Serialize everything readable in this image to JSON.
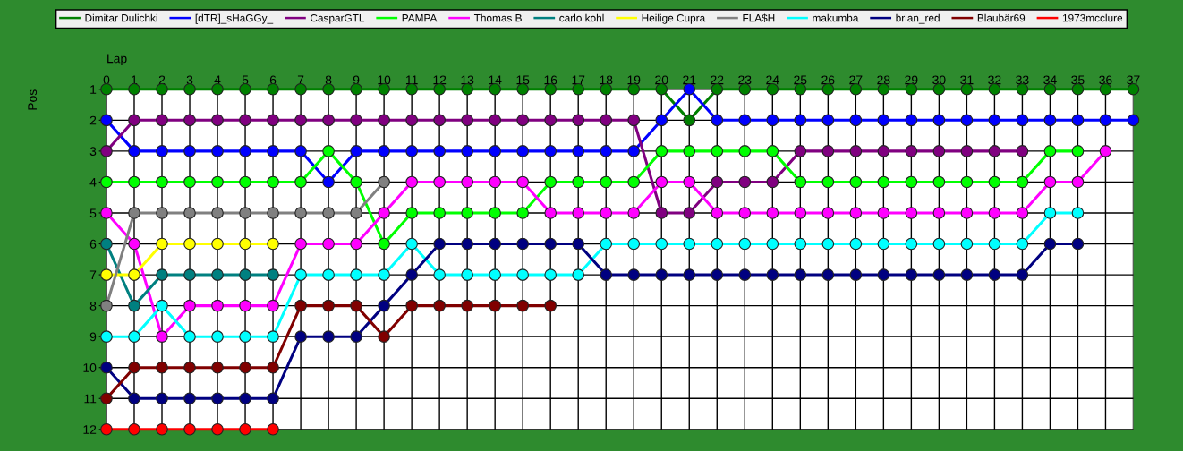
{
  "chart_data": {
    "type": "line",
    "xlabel": "Lap",
    "ylabel": "Pos",
    "x": [
      0,
      1,
      2,
      3,
      4,
      5,
      6,
      7,
      8,
      9,
      10,
      11,
      12,
      13,
      14,
      15,
      16,
      17,
      18,
      19,
      20,
      21,
      22,
      23,
      24,
      25,
      26,
      27,
      28,
      29,
      30,
      31,
      32,
      33,
      34,
      35,
      36,
      37
    ],
    "xlim": [
      0,
      37
    ],
    "xticks": [
      0,
      1,
      2,
      3,
      4,
      5,
      6,
      7,
      8,
      9,
      10,
      11,
      12,
      13,
      14,
      15,
      16,
      17,
      18,
      19,
      20,
      21,
      22,
      23,
      24,
      25,
      26,
      27,
      28,
      29,
      30,
      31,
      32,
      33,
      34,
      35,
      36,
      37
    ],
    "ylim": [
      12,
      1
    ],
    "yticks": [
      1,
      2,
      3,
      4,
      5,
      6,
      7,
      8,
      9,
      10,
      11,
      12
    ],
    "grid": true,
    "legend": "top",
    "marker": "circle",
    "line_style": "solid",
    "series": [
      {
        "name": "Dimitar Dulichki",
        "color": "#008000",
        "values": [
          1,
          1,
          1,
          1,
          1,
          1,
          1,
          1,
          1,
          1,
          1,
          1,
          1,
          1,
          1,
          1,
          1,
          1,
          1,
          1,
          1,
          2,
          1,
          1,
          1,
          1,
          1,
          1,
          1,
          1,
          1,
          1,
          1,
          1,
          1,
          1,
          1,
          1
        ]
      },
      {
        "name": "[dTR]_sHaGGy_",
        "color": "#0000ff",
        "values": [
          2,
          3,
          3,
          3,
          3,
          3,
          3,
          3,
          4,
          3,
          3,
          3,
          3,
          3,
          3,
          3,
          3,
          3,
          3,
          3,
          2,
          1,
          2,
          2,
          2,
          2,
          2,
          2,
          2,
          2,
          2,
          2,
          2,
          2,
          2,
          2,
          2,
          2
        ]
      },
      {
        "name": "CasparGTL",
        "color": "#800080",
        "values": [
          3,
          2,
          2,
          2,
          2,
          2,
          2,
          2,
          2,
          2,
          2,
          2,
          2,
          2,
          2,
          2,
          2,
          2,
          2,
          2,
          5,
          5,
          4,
          4,
          4,
          3,
          3,
          3,
          3,
          3,
          3,
          3,
          3,
          3,
          null,
          null,
          null,
          null
        ]
      },
      {
        "name": "PAMPA",
        "color": "#00ff00",
        "values": [
          4,
          4,
          4,
          4,
          4,
          4,
          4,
          4,
          3,
          4,
          6,
          5,
          5,
          5,
          5,
          5,
          4,
          4,
          4,
          4,
          3,
          3,
          3,
          3,
          3,
          4,
          4,
          4,
          4,
          4,
          4,
          4,
          4,
          4,
          3,
          3,
          null,
          null
        ]
      },
      {
        "name": "Thomas B",
        "color": "#ff00ff",
        "values": [
          5,
          6,
          9,
          8,
          8,
          8,
          8,
          6,
          6,
          6,
          5,
          4,
          4,
          4,
          4,
          4,
          5,
          5,
          5,
          5,
          4,
          4,
          5,
          5,
          5,
          5,
          5,
          5,
          5,
          5,
          5,
          5,
          5,
          5,
          4,
          4,
          3,
          null
        ]
      },
      {
        "name": "carlo kohl",
        "color": "#008080",
        "values": [
          6,
          8,
          7,
          7,
          7,
          7,
          7,
          null,
          null,
          null,
          null,
          null,
          null,
          null,
          null,
          null,
          null,
          null,
          null,
          null,
          null,
          null,
          null,
          null,
          null,
          null,
          null,
          null,
          null,
          null,
          null,
          null,
          null,
          null,
          null,
          null,
          null,
          null
        ]
      },
      {
        "name": "Heilige Cupra",
        "color": "#ffff00",
        "values": [
          7,
          7,
          6,
          6,
          6,
          6,
          6,
          null,
          null,
          null,
          null,
          null,
          null,
          null,
          null,
          null,
          null,
          null,
          null,
          null,
          null,
          null,
          null,
          null,
          null,
          null,
          null,
          null,
          null,
          null,
          null,
          null,
          null,
          null,
          null,
          null,
          null,
          null
        ]
      },
      {
        "name": "FLA$H",
        "color": "#808080",
        "values": [
          8,
          5,
          5,
          5,
          5,
          5,
          5,
          5,
          5,
          5,
          4,
          null,
          null,
          null,
          null,
          null,
          null,
          null,
          null,
          null,
          null,
          null,
          null,
          null,
          null,
          null,
          null,
          null,
          null,
          null,
          null,
          null,
          null,
          null,
          null,
          null,
          null,
          null
        ]
      },
      {
        "name": "makumba",
        "color": "#00ffff",
        "values": [
          9,
          9,
          8,
          9,
          9,
          9,
          9,
          7,
          7,
          7,
          7,
          6,
          7,
          7,
          7,
          7,
          7,
          7,
          6,
          6,
          6,
          6,
          6,
          6,
          6,
          6,
          6,
          6,
          6,
          6,
          6,
          6,
          6,
          6,
          5,
          5,
          null,
          null
        ]
      },
      {
        "name": "brian_red",
        "color": "#000080",
        "values": [
          10,
          11,
          11,
          11,
          11,
          11,
          11,
          9,
          9,
          9,
          8,
          7,
          6,
          6,
          6,
          6,
          6,
          6,
          7,
          7,
          7,
          7,
          7,
          7,
          7,
          7,
          7,
          7,
          7,
          7,
          7,
          7,
          7,
          7,
          6,
          6,
          null,
          null
        ]
      },
      {
        "name": "Blaubär69",
        "color": "#800000",
        "values": [
          11,
          10,
          10,
          10,
          10,
          10,
          10,
          8,
          8,
          8,
          9,
          8,
          8,
          8,
          8,
          8,
          8,
          null,
          null,
          null,
          null,
          null,
          null,
          null,
          null,
          null,
          null,
          null,
          null,
          null,
          null,
          null,
          null,
          null,
          null,
          null,
          null,
          null
        ]
      },
      {
        "name": "1973mcclure",
        "color": "#ff0000",
        "values": [
          12,
          12,
          12,
          12,
          12,
          12,
          12,
          null,
          null,
          null,
          null,
          null,
          null,
          null,
          null,
          null,
          null,
          null,
          null,
          null,
          null,
          null,
          null,
          null,
          null,
          null,
          null,
          null,
          null,
          null,
          null,
          null,
          null,
          null,
          null,
          null,
          null,
          null
        ]
      }
    ]
  }
}
